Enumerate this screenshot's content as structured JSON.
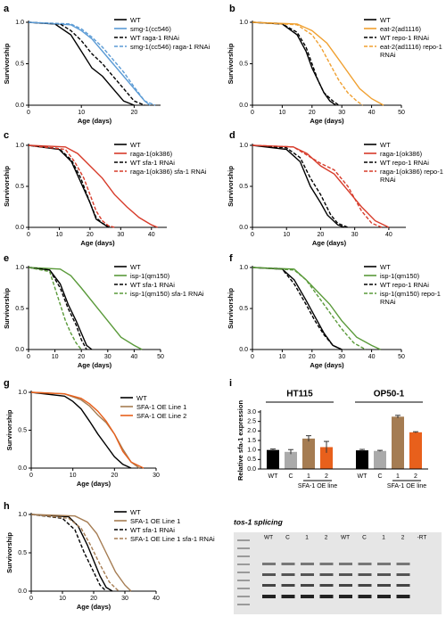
{
  "chart_data": [
    {
      "type": "line",
      "panel": "a",
      "xlabel": "Age (days)",
      "ylabel": "Survivorship",
      "xlim": [
        0,
        25
      ],
      "xticks": [
        0,
        10,
        20
      ],
      "ylim": [
        0,
        1
      ],
      "yticks": [
        {
          "value": 0,
          "label": "0.0"
        },
        0.5,
        {
          "value": 1,
          "label": "1.0"
        }
      ],
      "series": [
        {
          "name": "WT",
          "color": "#000000",
          "dash": false,
          "x": [
            0,
            5,
            8,
            10,
            12,
            14,
            16,
            18,
            20
          ],
          "values": [
            1,
            0.98,
            0.85,
            0.65,
            0.45,
            0.35,
            0.2,
            0.05,
            0
          ]
        },
        {
          "name": "smg-1(cc546)",
          "color": "#5b9bd5",
          "dash": false,
          "x": [
            0,
            8,
            10,
            12,
            14,
            16,
            18,
            20,
            22,
            23
          ],
          "values": [
            1,
            0.97,
            0.9,
            0.8,
            0.65,
            0.5,
            0.35,
            0.2,
            0.05,
            0
          ]
        },
        {
          "name": "WT raga-1 RNAi",
          "color": "#000000",
          "dash": true,
          "x": [
            0,
            6,
            8,
            10,
            12,
            14,
            16,
            18,
            20,
            22
          ],
          "values": [
            1,
            0.98,
            0.9,
            0.78,
            0.62,
            0.5,
            0.35,
            0.2,
            0.05,
            0
          ]
        },
        {
          "name": "smg-1(cc546) raga-1 RNAi",
          "color": "#5b9bd5",
          "dash": true,
          "x": [
            0,
            8,
            10,
            12,
            14,
            16,
            18,
            20,
            22,
            24
          ],
          "values": [
            1,
            0.98,
            0.92,
            0.82,
            0.7,
            0.55,
            0.4,
            0.22,
            0.05,
            0
          ]
        }
      ]
    },
    {
      "type": "line",
      "panel": "b",
      "xlabel": "Age (days)",
      "ylabel": "Survivorship",
      "xlim": [
        0,
        50
      ],
      "xticks": [
        0,
        10,
        20,
        30,
        40,
        50
      ],
      "ylim": [
        0,
        1
      ],
      "yticks": [
        {
          "value": 0,
          "label": "0.0"
        },
        0.5,
        {
          "value": 1,
          "label": "1.0"
        }
      ],
      "series": [
        {
          "name": "WT",
          "color": "#000000",
          "dash": false,
          "x": [
            0,
            10,
            15,
            18,
            20,
            22,
            24,
            26,
            28
          ],
          "values": [
            1,
            0.98,
            0.85,
            0.65,
            0.45,
            0.3,
            0.15,
            0.05,
            0
          ]
        },
        {
          "name": "eat-2(ad1116)",
          "color": "#f0a030",
          "dash": false,
          "x": [
            0,
            15,
            20,
            25,
            30,
            33,
            36,
            40,
            44
          ],
          "values": [
            1,
            0.98,
            0.9,
            0.75,
            0.5,
            0.35,
            0.2,
            0.08,
            0
          ]
        },
        {
          "name": "WT repo-1 RNAi",
          "color": "#000000",
          "dash": true,
          "x": [
            0,
            10,
            15,
            18,
            20,
            22,
            24,
            27,
            29
          ],
          "values": [
            1,
            0.98,
            0.88,
            0.7,
            0.5,
            0.3,
            0.15,
            0.05,
            0
          ]
        },
        {
          "name": "eat-2(ad1116) repo-1 RNAi",
          "color": "#f0a030",
          "dash": true,
          "x": [
            0,
            15,
            20,
            23,
            26,
            29,
            32,
            35,
            37
          ],
          "values": [
            1,
            0.97,
            0.85,
            0.7,
            0.5,
            0.3,
            0.15,
            0.05,
            0
          ]
        }
      ]
    },
    {
      "type": "line",
      "panel": "c",
      "xlabel": "Age (days)",
      "ylabel": "Survivorship",
      "xlim": [
        0,
        45
      ],
      "xticks": [
        0,
        10,
        20,
        30,
        40
      ],
      "ylim": [
        0,
        1
      ],
      "yticks": [
        {
          "value": 0,
          "label": "0.0"
        },
        0.5,
        {
          "value": 1,
          "label": "1.0"
        }
      ],
      "series": [
        {
          "name": "WT",
          "color": "#000000",
          "dash": false,
          "x": [
            0,
            10,
            14,
            17,
            20,
            22,
            24,
            26
          ],
          "values": [
            1,
            0.95,
            0.8,
            0.55,
            0.3,
            0.1,
            0.05,
            0
          ]
        },
        {
          "name": "raga-1(ok386)",
          "color": "#d73b2a",
          "dash": false,
          "x": [
            0,
            12,
            16,
            20,
            24,
            28,
            32,
            36,
            40,
            42
          ],
          "values": [
            1,
            0.98,
            0.9,
            0.75,
            0.6,
            0.4,
            0.25,
            0.12,
            0.03,
            0
          ]
        },
        {
          "name": "WT sfa-1 RNAi",
          "color": "#000000",
          "dash": true,
          "x": [
            0,
            10,
            14,
            17,
            20,
            22,
            24,
            27
          ],
          "values": [
            1,
            0.96,
            0.82,
            0.6,
            0.3,
            0.12,
            0.05,
            0
          ]
        },
        {
          "name": "raga-1(ok386) sfa-1 RNAi",
          "color": "#d73b2a",
          "dash": true,
          "x": [
            0,
            12,
            15,
            18,
            20,
            22,
            24,
            26,
            28
          ],
          "values": [
            1,
            0.95,
            0.8,
            0.6,
            0.4,
            0.2,
            0.08,
            0.02,
            0
          ]
        }
      ]
    },
    {
      "type": "line",
      "panel": "d",
      "xlabel": "Age (days)",
      "ylabel": "Survivorship",
      "xlim": [
        0,
        45
      ],
      "xticks": [
        0,
        10,
        20,
        30,
        40
      ],
      "ylim": [
        0,
        1
      ],
      "yticks": [
        {
          "value": 0,
          "label": "0.0"
        },
        0.5,
        {
          "value": 1,
          "label": "1.0"
        }
      ],
      "series": [
        {
          "name": "WT",
          "color": "#000000",
          "dash": false,
          "x": [
            0,
            10,
            14,
            17,
            20,
            22,
            25,
            27
          ],
          "values": [
            1,
            0.95,
            0.8,
            0.5,
            0.3,
            0.15,
            0.03,
            0
          ]
        },
        {
          "name": "raga-1(ok386)",
          "color": "#d73b2a",
          "dash": false,
          "x": [
            0,
            12,
            16,
            20,
            24,
            28,
            32,
            36,
            40
          ],
          "values": [
            1,
            0.98,
            0.9,
            0.75,
            0.65,
            0.45,
            0.25,
            0.08,
            0
          ]
        },
        {
          "name": "WT repo-1 RNAi",
          "color": "#000000",
          "dash": true,
          "x": [
            0,
            10,
            14,
            17,
            20,
            23,
            25,
            28
          ],
          "values": [
            1,
            0.97,
            0.85,
            0.6,
            0.4,
            0.15,
            0.05,
            0
          ]
        },
        {
          "name": "raga-1(ok386) repo-1 RNAi",
          "color": "#d73b2a",
          "dash": true,
          "x": [
            0,
            12,
            16,
            20,
            24,
            28,
            32,
            35,
            38
          ],
          "values": [
            1,
            0.98,
            0.88,
            0.78,
            0.7,
            0.5,
            0.2,
            0.05,
            0
          ]
        }
      ]
    },
    {
      "type": "line",
      "panel": "e",
      "xlabel": "Age (days)",
      "ylabel": "Survivorship",
      "xlim": [
        0,
        50
      ],
      "xticks": [
        0,
        10,
        20,
        30,
        40,
        50
      ],
      "ylim": [
        0,
        1
      ],
      "yticks": [
        {
          "value": 0,
          "label": "0.0"
        },
        0.5,
        {
          "value": 1,
          "label": "1.0"
        }
      ],
      "series": [
        {
          "name": "WT",
          "color": "#000000",
          "dash": false,
          "x": [
            0,
            8,
            12,
            15,
            18,
            20,
            22,
            24
          ],
          "values": [
            1,
            0.97,
            0.8,
            0.55,
            0.35,
            0.2,
            0.05,
            0
          ]
        },
        {
          "name": "isp-1(qm150)",
          "color": "#5a9a3a",
          "dash": false,
          "x": [
            0,
            12,
            16,
            20,
            25,
            30,
            35,
            40,
            43
          ],
          "values": [
            1,
            0.98,
            0.9,
            0.75,
            0.55,
            0.35,
            0.15,
            0.05,
            0
          ]
        },
        {
          "name": "WT sfa-1 RNAi",
          "color": "#000000",
          "dash": true,
          "x": [
            0,
            8,
            12,
            15,
            18,
            20,
            22
          ],
          "values": [
            1,
            0.97,
            0.75,
            0.5,
            0.3,
            0.12,
            0
          ]
        },
        {
          "name": "isp-1(qm150) sfa-1 RNAi",
          "color": "#5a9a3a",
          "dash": true,
          "x": [
            0,
            8,
            10,
            12,
            14,
            16,
            18,
            20
          ],
          "values": [
            1,
            0.95,
            0.75,
            0.55,
            0.35,
            0.2,
            0.08,
            0
          ]
        }
      ]
    },
    {
      "type": "line",
      "panel": "f",
      "xlabel": "Age (days)",
      "ylabel": "Survivorship",
      "xlim": [
        0,
        50
      ],
      "xticks": [
        0,
        10,
        20,
        30,
        40,
        50
      ],
      "ylim": [
        0,
        1
      ],
      "yticks": [
        {
          "value": 0,
          "label": "0.0"
        },
        0.5,
        {
          "value": 1,
          "label": "1.0"
        }
      ],
      "series": [
        {
          "name": "WT",
          "color": "#000000",
          "dash": false,
          "x": [
            0,
            10,
            14,
            18,
            21,
            24,
            27,
            30
          ],
          "values": [
            1,
            0.98,
            0.85,
            0.6,
            0.4,
            0.2,
            0.05,
            0
          ]
        },
        {
          "name": "isp-1(qm150)",
          "color": "#5a9a3a",
          "dash": false,
          "x": [
            0,
            14,
            18,
            22,
            26,
            30,
            35,
            40,
            43
          ],
          "values": [
            1,
            0.98,
            0.85,
            0.7,
            0.55,
            0.35,
            0.15,
            0.05,
            0
          ]
        },
        {
          "name": "WT repo-1 RNAi",
          "color": "#000000",
          "dash": true,
          "x": [
            0,
            10,
            14,
            18,
            21,
            24,
            27,
            30
          ],
          "values": [
            1,
            0.98,
            0.8,
            0.55,
            0.35,
            0.18,
            0.05,
            0
          ]
        },
        {
          "name": "isp-1(qm150) repo-1 RNAi",
          "color": "#5a9a3a",
          "dash": true,
          "x": [
            0,
            14,
            18,
            22,
            26,
            30,
            34,
            38
          ],
          "values": [
            1,
            0.97,
            0.85,
            0.65,
            0.45,
            0.25,
            0.08,
            0
          ]
        }
      ]
    },
    {
      "type": "line",
      "panel": "g",
      "xlabel": "Age (days)",
      "ylabel": "Survivorship",
      "xlim": [
        0,
        30
      ],
      "xticks": [
        0,
        10,
        20,
        30
      ],
      "ylim": [
        0,
        1
      ],
      "yticks": [
        {
          "value": 0,
          "label": "0.0"
        },
        0.5,
        {
          "value": 1,
          "label": "1.0"
        }
      ],
      "series": [
        {
          "name": "WT",
          "color": "#000000",
          "dash": false,
          "x": [
            0,
            8,
            10,
            12,
            14,
            16,
            18,
            20,
            22,
            24
          ],
          "values": [
            1,
            0.95,
            0.88,
            0.78,
            0.62,
            0.45,
            0.3,
            0.15,
            0.05,
            0
          ]
        },
        {
          "name": "SFA-1 OE Line 1",
          "color": "#a57c52",
          "dash": false,
          "x": [
            0,
            8,
            12,
            14,
            16,
            18,
            20,
            22,
            24,
            26
          ],
          "values": [
            1,
            0.98,
            0.9,
            0.82,
            0.7,
            0.6,
            0.45,
            0.25,
            0.08,
            0
          ]
        },
        {
          "name": "SFA-1 OE Line 2",
          "color": "#e8601c",
          "dash": false,
          "x": [
            0,
            8,
            12,
            14,
            16,
            18,
            20,
            22,
            24,
            27
          ],
          "values": [
            1,
            0.98,
            0.92,
            0.85,
            0.75,
            0.62,
            0.45,
            0.22,
            0.08,
            0
          ]
        }
      ]
    },
    {
      "type": "line",
      "panel": "h",
      "xlabel": "Age (days)",
      "ylabel": "Survivorship",
      "xlim": [
        0,
        40
      ],
      "xticks": [
        0,
        10,
        20,
        30,
        40
      ],
      "ylim": [
        0,
        1
      ],
      "yticks": [
        {
          "value": 0,
          "label": "0.0"
        },
        0.5,
        {
          "value": 1,
          "label": "1.0"
        }
      ],
      "series": [
        {
          "name": "WT",
          "color": "#000000",
          "dash": false,
          "x": [
            0,
            12,
            15,
            18,
            20,
            22,
            24,
            26
          ],
          "values": [
            1,
            0.97,
            0.85,
            0.6,
            0.4,
            0.2,
            0.05,
            0
          ]
        },
        {
          "name": "SFA-1 OE Line 1",
          "color": "#a57c52",
          "dash": false,
          "x": [
            0,
            14,
            18,
            21,
            24,
            27,
            30,
            32
          ],
          "values": [
            1,
            0.98,
            0.9,
            0.75,
            0.5,
            0.25,
            0.08,
            0
          ]
        },
        {
          "name": "WT sfa-1 RNAi",
          "color": "#000000",
          "dash": true,
          "x": [
            0,
            10,
            14,
            17,
            20,
            22,
            24
          ],
          "values": [
            1,
            0.95,
            0.8,
            0.5,
            0.25,
            0.08,
            0
          ]
        },
        {
          "name": "SFA-1 OE Line 1 sfa-1 RNAi",
          "color": "#a57c52",
          "dash": true,
          "x": [
            0,
            12,
            16,
            19,
            22,
            25,
            28
          ],
          "values": [
            1,
            0.95,
            0.82,
            0.6,
            0.35,
            0.12,
            0
          ]
        }
      ]
    },
    {
      "type": "bar",
      "panel": "i",
      "ylabel": "Relative sfa-1 expression",
      "ylim": [
        0,
        3
      ],
      "yticks": [
        {
          "value": 0,
          "label": "0.0"
        },
        0.5,
        {
          "value": 1,
          "label": "1.0"
        },
        1.5,
        {
          "value": 2,
          "label": "2.0"
        },
        2.5,
        {
          "value": 3,
          "label": "3.0"
        }
      ],
      "groups": [
        {
          "name": "HT115",
          "sublabel": "SFA-1 OE line",
          "categories": [
            "WT",
            "C",
            "1",
            "2"
          ],
          "values": [
            1.0,
            0.9,
            1.6,
            1.15
          ],
          "errors": [
            0.05,
            0.12,
            0.15,
            0.3
          ],
          "colors": [
            "#000000",
            "#aaaaaa",
            "#a57c52",
            "#e8601c"
          ]
        },
        {
          "name": "OP50-1",
          "sublabel": "SFA-1 OE line",
          "categories": [
            "WT",
            "C",
            "1",
            "2"
          ],
          "values": [
            0.98,
            0.95,
            2.75,
            1.93
          ],
          "errors": [
            0.05,
            0.03,
            0.07,
            0.03
          ],
          "colors": [
            "#000000",
            "#aaaaaa",
            "#a57c52",
            "#e8601c"
          ]
        }
      ]
    }
  ],
  "gel": {
    "title": "tos-1 splicing",
    "lanes": [
      "WT",
      "C",
      "1",
      "2",
      "WT",
      "C",
      "1",
      "2",
      "-RT"
    ]
  }
}
